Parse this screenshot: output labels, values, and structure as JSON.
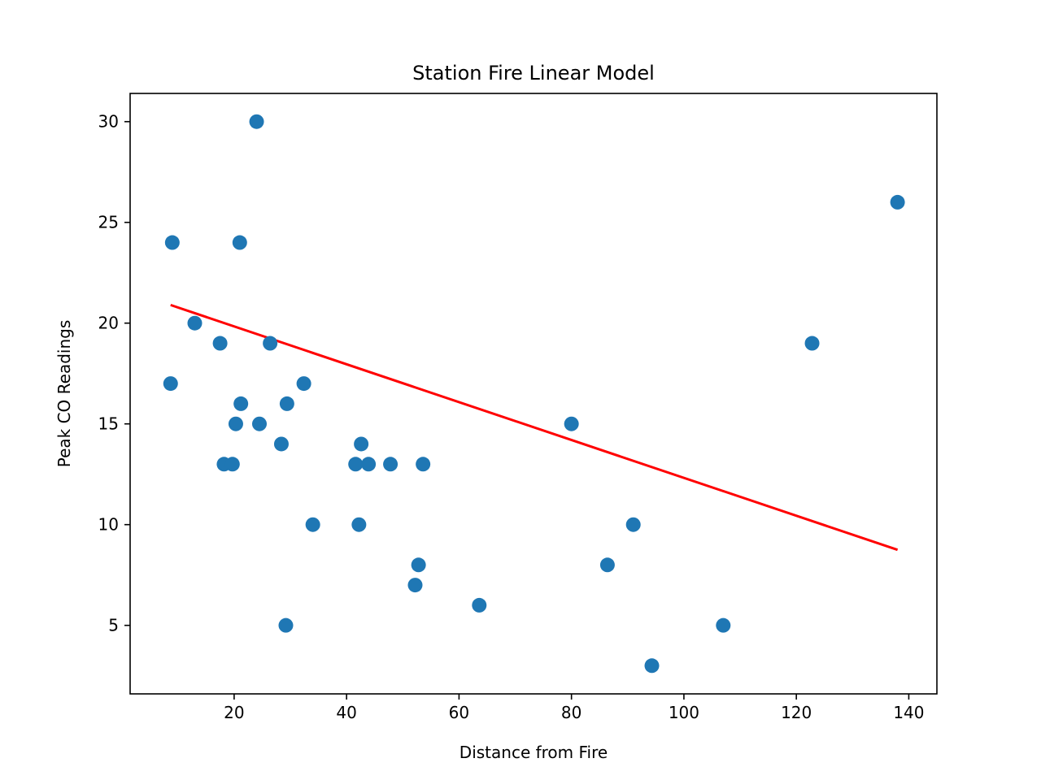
{
  "chart_data": {
    "type": "scatter",
    "title": "Station Fire Linear Model",
    "xlabel": "Distance from Fire",
    "ylabel": "Peak CO Readings",
    "xlim": [
      1.5,
      145
    ],
    "ylim": [
      1.6,
      31.4
    ],
    "xticks": [
      20,
      40,
      60,
      80,
      100,
      120,
      140
    ],
    "yticks": [
      5,
      10,
      15,
      20,
      25,
      30
    ],
    "grid": false,
    "colors": {
      "points": "#1f77b4",
      "fit_line": "#ff0000"
    },
    "series": [
      {
        "type": "scatter",
        "points": [
          {
            "x": 24.0,
            "y": 30
          },
          {
            "x": 138.0,
            "y": 26
          },
          {
            "x": 9.0,
            "y": 24
          },
          {
            "x": 21.0,
            "y": 24
          },
          {
            "x": 13.0,
            "y": 20
          },
          {
            "x": 17.5,
            "y": 19
          },
          {
            "x": 26.4,
            "y": 19
          },
          {
            "x": 122.8,
            "y": 19
          },
          {
            "x": 8.7,
            "y": 17
          },
          {
            "x": 32.4,
            "y": 17
          },
          {
            "x": 21.2,
            "y": 16
          },
          {
            "x": 29.4,
            "y": 16
          },
          {
            "x": 20.3,
            "y": 15
          },
          {
            "x": 24.5,
            "y": 15
          },
          {
            "x": 80.0,
            "y": 15
          },
          {
            "x": 28.4,
            "y": 14
          },
          {
            "x": 42.6,
            "y": 14
          },
          {
            "x": 18.2,
            "y": 13
          },
          {
            "x": 19.7,
            "y": 13
          },
          {
            "x": 41.6,
            "y": 13
          },
          {
            "x": 43.9,
            "y": 13
          },
          {
            "x": 47.8,
            "y": 13
          },
          {
            "x": 53.6,
            "y": 13
          },
          {
            "x": 34.0,
            "y": 10
          },
          {
            "x": 42.2,
            "y": 10
          },
          {
            "x": 91.0,
            "y": 10
          },
          {
            "x": 52.8,
            "y": 8
          },
          {
            "x": 86.4,
            "y": 8
          },
          {
            "x": 52.2,
            "y": 7
          },
          {
            "x": 63.6,
            "y": 6
          },
          {
            "x": 29.2,
            "y": 5
          },
          {
            "x": 107.0,
            "y": 5
          },
          {
            "x": 94.3,
            "y": 3
          }
        ]
      },
      {
        "type": "line",
        "points": [
          {
            "x": 8.7,
            "y": 20.9
          },
          {
            "x": 138.0,
            "y": 8.75
          }
        ]
      }
    ]
  }
}
